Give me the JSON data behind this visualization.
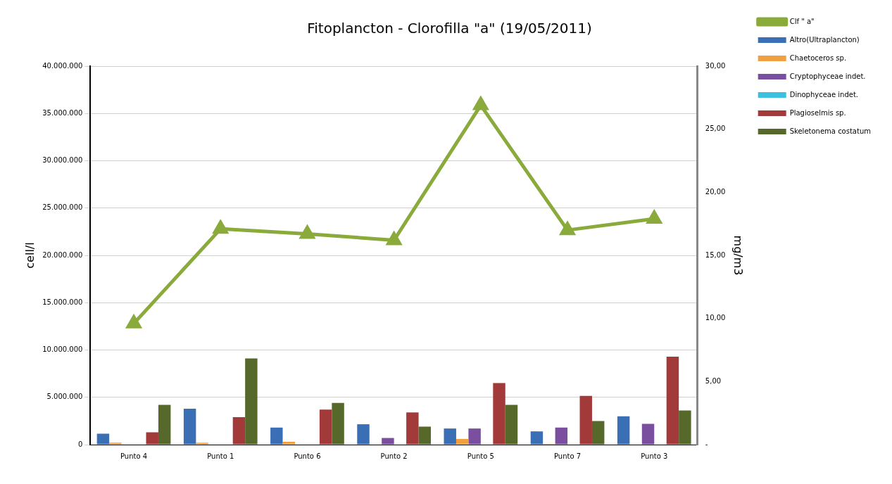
{
  "chart_data": {
    "type": "bar",
    "title": "Fitoplancton - Clorofilla \"a\" (19/05/2011)",
    "ylabel": "cell/l",
    "y2label": "mg/m3",
    "categories": [
      "Punto 4",
      "Punto 1",
      "Punto 6",
      "Punto 2",
      "Punto 5",
      "Punto 7",
      "Punto 3"
    ],
    "series": [
      {
        "name": "Altro(Ultraplancton)",
        "color": "#3a6fb5",
        "values": [
          1150000,
          3800000,
          1800000,
          2150000,
          1700000,
          1400000,
          3000000
        ]
      },
      {
        "name": "Chaetoceros sp.",
        "color": "#f0a040",
        "values": [
          200000,
          200000,
          300000,
          0,
          600000,
          100000,
          0
        ]
      },
      {
        "name": "Cryptophyceae indet.",
        "color": "#7b4fa0",
        "values": [
          0,
          0,
          0,
          700000,
          1700000,
          1800000,
          2200000
        ]
      },
      {
        "name": "Dinophyceae indet.",
        "color": "#3cc0e0",
        "values": [
          0,
          0,
          0,
          0,
          0,
          0,
          0
        ]
      },
      {
        "name": "Plagioselmis sp.",
        "color": "#a33a3a",
        "values": [
          1300000,
          2900000,
          3700000,
          3400000,
          6500000,
          5150000,
          9300000
        ]
      },
      {
        "name": "Skeletonema costatum",
        "color": "#56692a",
        "values": [
          4200000,
          9100000,
          4400000,
          1900000,
          4200000,
          2500000,
          3600000
        ]
      },
      {
        "name": "Clf \" a\"",
        "type": "line",
        "axis": "y2",
        "color": "#8aab3c",
        "values": [
          9.6,
          17.1,
          16.7,
          16.2,
          26.9,
          17.0,
          17.9
        ]
      }
    ],
    "ylim": [
      0,
      40000000
    ],
    "yticks": [
      0,
      {
        "value": 5000000,
        "label": "5.000.000"
      },
      {
        "value": 10000000,
        "label": "10.000.000"
      },
      {
        "value": 15000000,
        "label": "15.000.000"
      },
      {
        "value": 20000000,
        "label": "20.000.000"
      },
      {
        "value": 25000000,
        "label": "25.000.000"
      },
      {
        "value": 30000000,
        "label": "30.000.000"
      },
      {
        "value": 35000000,
        "label": "35.000.000"
      },
      {
        "value": 40000000,
        "label": "40.000.000"
      }
    ],
    "y2lim": [
      0,
      30
    ],
    "y2ticks": [
      {
        "value": 0,
        "label": "-"
      },
      {
        "value": 5,
        "label": "5,00"
      },
      {
        "value": 10,
        "label": "10,00"
      },
      {
        "value": 15,
        "label": "15,00"
      },
      {
        "value": 20,
        "label": "20,00"
      },
      {
        "value": 25,
        "label": "25,00"
      },
      {
        "value": 30,
        "label": "30,00"
      }
    ],
    "grid": "y",
    "legend": "right",
    "marker": "triangle"
  }
}
